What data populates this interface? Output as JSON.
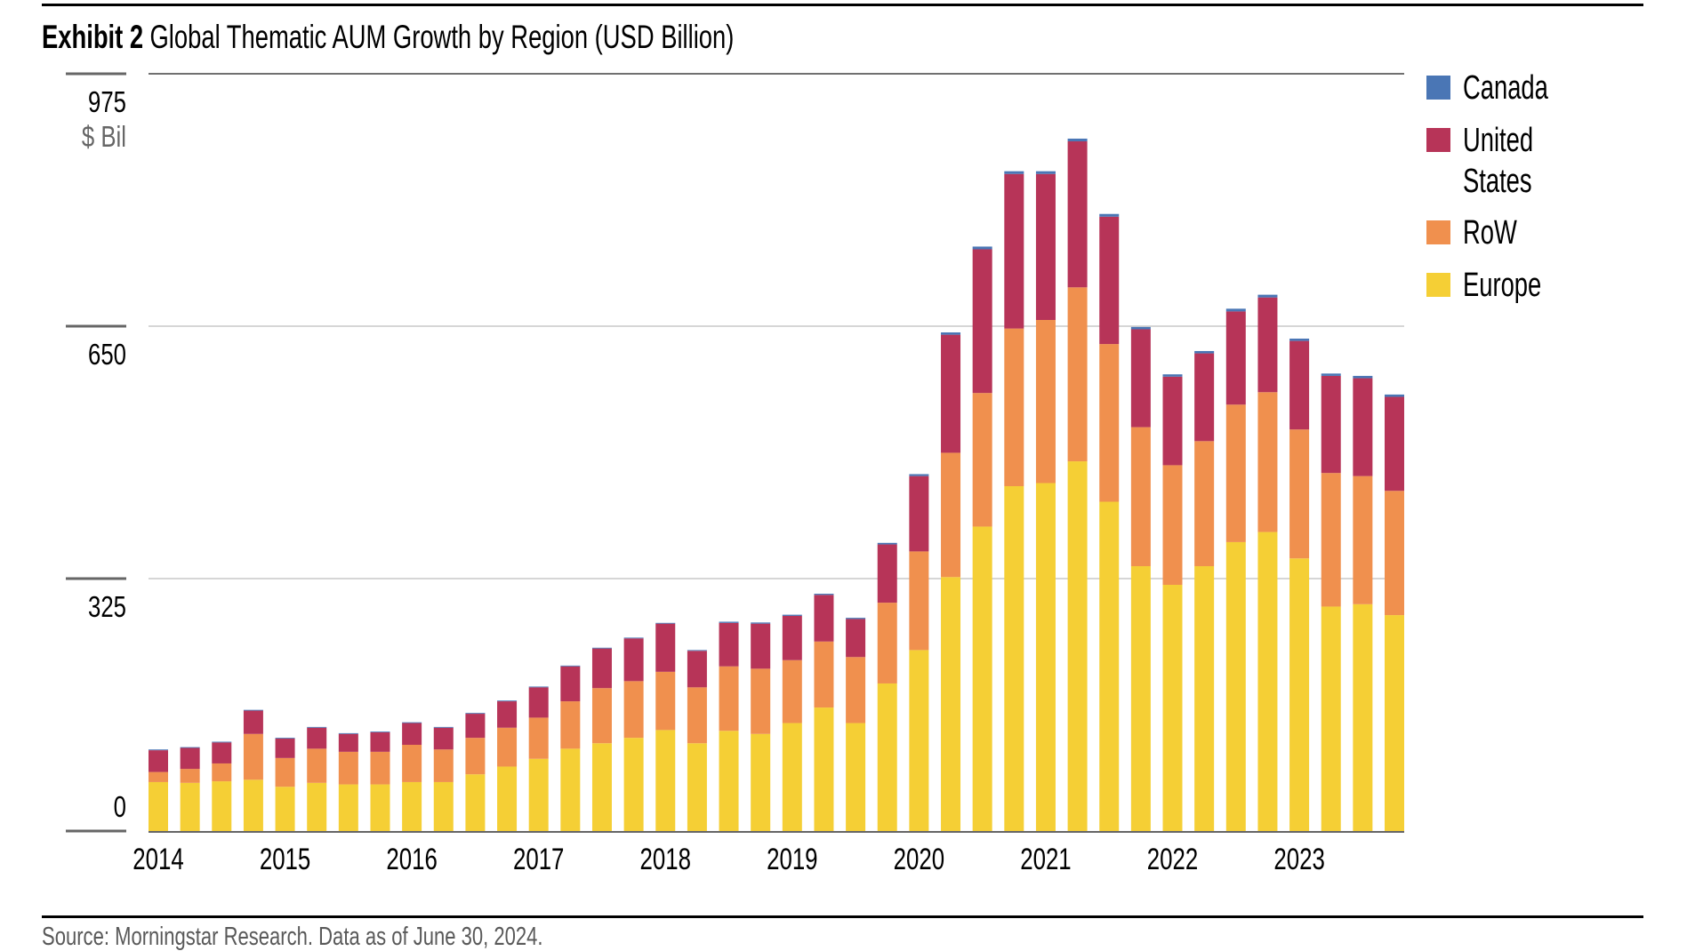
{
  "header": {
    "exhibit_label": "Exhibit 2",
    "title": "Global Thematic AUM Growth by Region (USD Billion)"
  },
  "footer": {
    "source": "Source: Morningstar Research. Data as of June 30, 2024."
  },
  "colors": {
    "Canada": "#4A76B5",
    "United States": "#B73458",
    "RoW": "#F0904E",
    "Europe": "#F5CF35",
    "gridline": "#c8c8c8",
    "axis": "#666666"
  },
  "chart_data": {
    "type": "bar",
    "stacked": true,
    "title": "Global Thematic AUM Growth by Region (USD Billion)",
    "xlabel": "",
    "ylabel": "$ Bil",
    "ylim": [
      0,
      975
    ],
    "yticks": [
      0,
      325,
      650,
      975
    ],
    "ytick_labels": [
      "0",
      "325",
      "650",
      "975"
    ],
    "unit_label": "$ Bil",
    "grid": true,
    "legend_position": "right",
    "categories": [
      "P1",
      "P2",
      "P3",
      "P4",
      "P5",
      "P6",
      "P7",
      "P8",
      "P9",
      "P10",
      "P11",
      "P12",
      "P13",
      "P14",
      "P15",
      "P16",
      "P17",
      "P18",
      "P19",
      "P20",
      "P21",
      "P22",
      "P23",
      "P24",
      "P25",
      "P26",
      "P27",
      "P28",
      "P29",
      "P30",
      "P31",
      "P32",
      "P33",
      "P34",
      "P35",
      "P36",
      "P37",
      "P38",
      "P39",
      "P40"
    ],
    "xtick_labels": [
      {
        "index": 0,
        "label": "2014"
      },
      {
        "index": 4,
        "label": "2015"
      },
      {
        "index": 8,
        "label": "2016"
      },
      {
        "index": 12,
        "label": "2017"
      },
      {
        "index": 16,
        "label": "2018"
      },
      {
        "index": 20,
        "label": "2019"
      },
      {
        "index": 24,
        "label": "2020"
      },
      {
        "index": 28,
        "label": "2021"
      },
      {
        "index": 32,
        "label": "2022"
      },
      {
        "index": 36,
        "label": "2023"
      }
    ],
    "series": [
      {
        "name": "Europe",
        "values": [
          63,
          62,
          64,
          66,
          57,
          62,
          60,
          60,
          63,
          63,
          73,
          83,
          93,
          106,
          113,
          120,
          130,
          113,
          129,
          125,
          139,
          159,
          139,
          190,
          233,
          327,
          392,
          444,
          448,
          476,
          424,
          341,
          317,
          341,
          372,
          385,
          351,
          289,
          292,
          278
        ]
      },
      {
        "name": "RoW",
        "values": [
          13,
          18,
          23,
          59,
          37,
          44,
          42,
          42,
          48,
          42,
          47,
          50,
          53,
          61,
          71,
          73,
          75,
          72,
          83,
          84,
          81,
          85,
          85,
          104,
          127,
          160,
          172,
          203,
          210,
          224,
          203,
          179,
          154,
          161,
          177,
          180,
          166,
          172,
          165,
          160
        ]
      },
      {
        "name": "United States",
        "values": [
          28,
          27,
          27,
          30,
          25,
          27,
          23,
          25,
          28,
          28,
          31,
          34,
          39,
          45,
          51,
          55,
          62,
          47,
          56,
          58,
          57,
          60,
          49,
          75,
          97,
          152,
          185,
          199,
          188,
          188,
          164,
          126,
          114,
          113,
          120,
          122,
          114,
          125,
          126,
          121
        ]
      },
      {
        "name": "Canada",
        "values": [
          1,
          1,
          1,
          1,
          1,
          1,
          1,
          1,
          1,
          1,
          1,
          1,
          1,
          1,
          1,
          1,
          1,
          1,
          1.5,
          1.5,
          1.5,
          1.5,
          1.5,
          2,
          2.5,
          3,
          3.5,
          3.5,
          3.5,
          3.5,
          3.5,
          3,
          3,
          3,
          3.5,
          3.5,
          3,
          3,
          3,
          3
        ]
      }
    ],
    "legend": [
      "Canada",
      "United States",
      "RoW",
      "Europe"
    ]
  }
}
